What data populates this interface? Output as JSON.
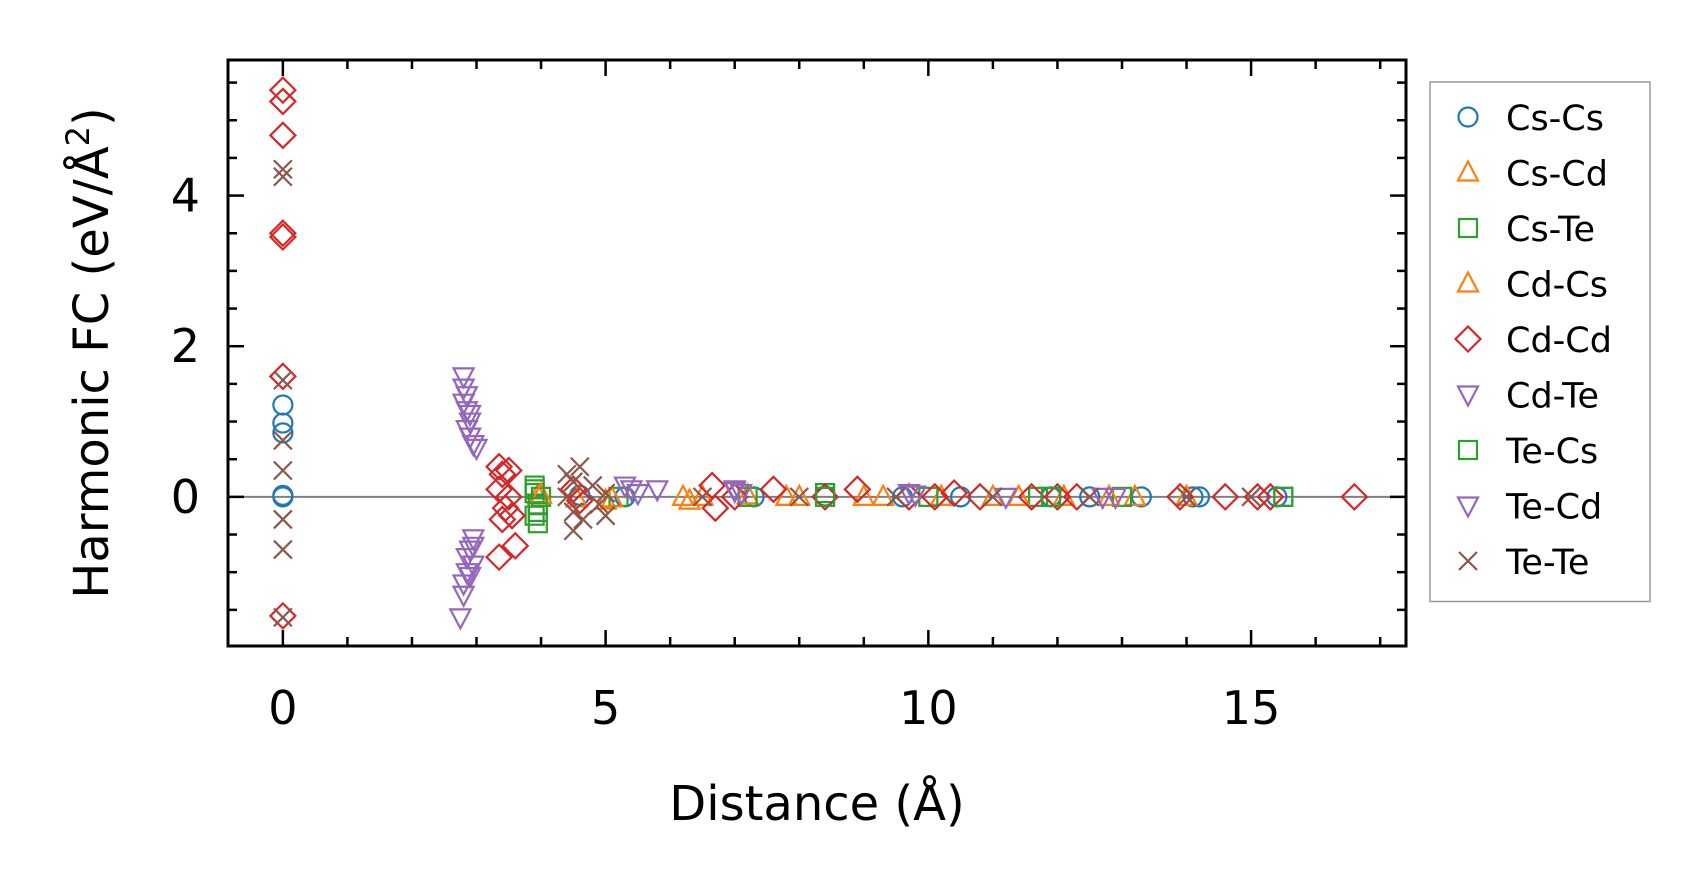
{
  "chart_data": {
    "type": "scatter",
    "xlabel": "Distance (Å)",
    "ylabel_main": "Harmonic FC (eV/Å",
    "ylabel_sup": "2",
    "ylabel_end": ")",
    "xlim": [
      -0.85,
      17.4
    ],
    "ylim": [
      -1.98,
      5.8
    ],
    "xticks": [
      0,
      5,
      10,
      15
    ],
    "yticks": [
      0,
      2,
      4
    ],
    "xtick_labels": [
      "0",
      "5",
      "10",
      "15"
    ],
    "ytick_labels": [
      "0",
      "2",
      "4"
    ],
    "zero_line": true,
    "legend_position": "outside-right",
    "series": [
      {
        "name": "Cs-Cs",
        "marker": "circle",
        "color": "#1f77b4",
        "points": [
          [
            0,
            1.22
          ],
          [
            0,
            0.98
          ],
          [
            0,
            0.85
          ],
          [
            0,
            0.02
          ],
          [
            0,
            0.0
          ],
          [
            4.6,
            0.02
          ],
          [
            5.3,
            0.0
          ],
          [
            7.3,
            0.0
          ],
          [
            8.4,
            0.01
          ],
          [
            9.6,
            0.0
          ],
          [
            10.5,
            0.0
          ],
          [
            11.9,
            0.0
          ],
          [
            12.5,
            0.0
          ],
          [
            13.3,
            0.0
          ],
          [
            14.1,
            0.0
          ],
          [
            14.2,
            0.0
          ],
          [
            15.4,
            0.0
          ]
        ]
      },
      {
        "name": "Cs-Cd",
        "marker": "triangle-up",
        "color": "#ff7f0e",
        "points": [
          [
            3.95,
            0.02
          ],
          [
            4.55,
            -0.02
          ],
          [
            5.0,
            -0.05
          ],
          [
            6.2,
            0.0
          ],
          [
            6.3,
            -0.05
          ],
          [
            7.2,
            0.02
          ],
          [
            8.0,
            0.0
          ],
          [
            9.0,
            0.0
          ],
          [
            10.2,
            0.0
          ],
          [
            11.0,
            0.0
          ],
          [
            12.1,
            0.0
          ],
          [
            13.2,
            0.0
          ],
          [
            14.0,
            0.0
          ]
        ]
      },
      {
        "name": "Cs-Te",
        "marker": "square",
        "color": "#2ca02c",
        "points": [
          [
            3.9,
            0.15
          ],
          [
            3.9,
            0.05
          ],
          [
            3.95,
            -0.1
          ],
          [
            3.9,
            -0.25
          ],
          [
            3.95,
            -0.35
          ],
          [
            4.0,
            0.0
          ],
          [
            5.2,
            0.0
          ],
          [
            7.2,
            0.0
          ],
          [
            8.4,
            0.05
          ],
          [
            10.0,
            0.0
          ],
          [
            11.7,
            0.0
          ],
          [
            13.0,
            0.0
          ],
          [
            15.5,
            0.0
          ]
        ]
      },
      {
        "name": "Cd-Cs",
        "marker": "triangle-up",
        "color": "#ff7f0e",
        "points": [
          [
            4.0,
            0.03
          ],
          [
            5.1,
            -0.02
          ],
          [
            6.5,
            0.0
          ],
          [
            7.8,
            0.0
          ],
          [
            9.3,
            0.0
          ],
          [
            11.4,
            0.0
          ],
          [
            12.8,
            0.0
          ]
        ]
      },
      {
        "name": "Cd-Cd",
        "marker": "diamond",
        "color": "#d62728",
        "points": [
          [
            0,
            5.4
          ],
          [
            0,
            5.25
          ],
          [
            0,
            4.8
          ],
          [
            0,
            3.5
          ],
          [
            0,
            3.45
          ],
          [
            0,
            1.6
          ],
          [
            0,
            -1.58
          ],
          [
            3.35,
            0.4
          ],
          [
            3.4,
            0.3
          ],
          [
            3.5,
            0.35
          ],
          [
            3.35,
            0.1
          ],
          [
            3.5,
            0.0
          ],
          [
            3.45,
            -0.15
          ],
          [
            3.4,
            -0.3
          ],
          [
            3.55,
            -0.25
          ],
          [
            3.35,
            -0.8
          ],
          [
            3.6,
            -0.65
          ],
          [
            4.5,
            0.1
          ],
          [
            4.6,
            -0.05
          ],
          [
            6.65,
            0.15
          ],
          [
            6.7,
            -0.15
          ],
          [
            7.0,
            0.0
          ],
          [
            7.6,
            0.1
          ],
          [
            8.4,
            0.0
          ],
          [
            8.9,
            0.1
          ],
          [
            9.7,
            0.0
          ],
          [
            10.1,
            0.0
          ],
          [
            10.4,
            0.05
          ],
          [
            10.8,
            0.0
          ],
          [
            11.6,
            0.0
          ],
          [
            12.0,
            0.0
          ],
          [
            12.3,
            0.0
          ],
          [
            13.9,
            0.0
          ],
          [
            14.6,
            0.0
          ],
          [
            15.1,
            0.0
          ],
          [
            15.3,
            0.0
          ],
          [
            16.6,
            0.0
          ]
        ]
      },
      {
        "name": "Cd-Te",
        "marker": "triangle-down",
        "color": "#9467bd",
        "points": [
          [
            2.8,
            1.6
          ],
          [
            2.85,
            1.35
          ],
          [
            2.8,
            1.25
          ],
          [
            2.85,
            1.15
          ],
          [
            2.9,
            1.0
          ],
          [
            2.85,
            0.9
          ],
          [
            2.9,
            0.8
          ],
          [
            2.95,
            0.7
          ],
          [
            3.0,
            0.65
          ],
          [
            2.95,
            -0.55
          ],
          [
            2.9,
            -0.7
          ],
          [
            2.85,
            -0.8
          ],
          [
            2.95,
            -0.9
          ],
          [
            2.85,
            -1.0
          ],
          [
            2.8,
            -1.15
          ],
          [
            2.8,
            -1.3
          ],
          [
            2.75,
            -1.6
          ],
          [
            5.3,
            0.15
          ],
          [
            5.5,
            0.05
          ],
          [
            5.8,
            0.1
          ],
          [
            7.0,
            0.1
          ],
          [
            7.1,
            0.05
          ],
          [
            9.7,
            0.05
          ],
          [
            11.2,
            0.0
          ],
          [
            12.7,
            0.0
          ]
        ]
      },
      {
        "name": "Te-Cs",
        "marker": "square",
        "color": "#2ca02c",
        "points": [
          [
            3.9,
            0.1
          ],
          [
            3.95,
            -0.2
          ],
          [
            8.4,
            0.0
          ],
          [
            11.9,
            0.0
          ],
          [
            15.5,
            0.0
          ]
        ]
      },
      {
        "name": "Te-Cd",
        "marker": "triangle-down",
        "color": "#9467bd",
        "points": [
          [
            2.8,
            1.45
          ],
          [
            2.9,
            1.1
          ],
          [
            2.95,
            -0.65
          ],
          [
            2.9,
            -1.05
          ],
          [
            5.4,
            0.1
          ],
          [
            7.0,
            0.08
          ],
          [
            9.8,
            0.03
          ],
          [
            12.9,
            0.0
          ]
        ]
      },
      {
        "name": "Te-Te",
        "marker": "x",
        "color": "#8c564b",
        "points": [
          [
            0,
            4.35
          ],
          [
            0,
            4.25
          ],
          [
            0,
            1.55
          ],
          [
            0,
            0.75
          ],
          [
            0,
            0.35
          ],
          [
            0,
            -0.3
          ],
          [
            0,
            -0.7
          ],
          [
            0,
            -1.6
          ],
          [
            4.4,
            0.3
          ],
          [
            4.5,
            0.2
          ],
          [
            4.6,
            0.4
          ],
          [
            4.4,
            0.0
          ],
          [
            4.5,
            -0.2
          ],
          [
            4.65,
            -0.3
          ],
          [
            4.5,
            -0.45
          ],
          [
            4.8,
            0.15
          ],
          [
            4.9,
            -0.1
          ],
          [
            5.0,
            0.05
          ],
          [
            5.0,
            -0.25
          ],
          [
            6.5,
            0.0
          ],
          [
            8.0,
            0.0
          ],
          [
            9.5,
            0.0
          ],
          [
            11.0,
            0.0
          ],
          [
            12.5,
            0.0
          ],
          [
            14.0,
            0.0
          ],
          [
            15.0,
            0.0
          ]
        ]
      }
    ]
  }
}
